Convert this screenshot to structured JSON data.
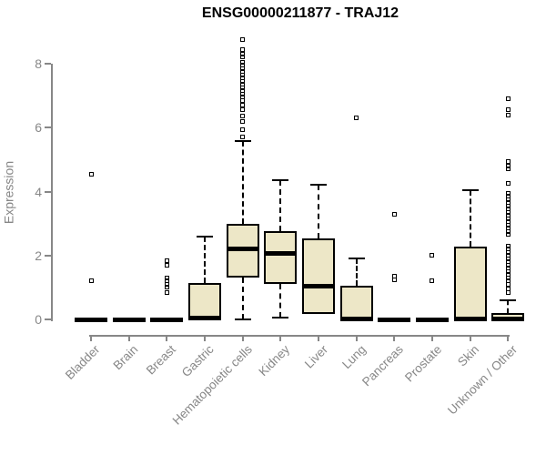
{
  "chart_data": {
    "type": "boxplot",
    "title": "ENSG00000211877 - TRAJ12",
    "xlabel": "",
    "ylabel": "Expression",
    "ylim": [
      0,
      8.8
    ],
    "yticks": [
      0,
      2,
      4,
      6,
      8
    ],
    "grid": false,
    "legend": "none",
    "box_fill_color": "#EDE7C7",
    "box_border_color": "#000000",
    "axis_color": "#878787",
    "title_color": "#000000",
    "categories": [
      "Bladder",
      "Brain",
      "Breast",
      "Gastric",
      "Hematopoietic cells",
      "Kidney",
      "Liver",
      "Lung",
      "Pancreas",
      "Prostate",
      "Skin",
      "Unknown / Other"
    ],
    "boxes": [
      {
        "category": "Bladder",
        "q1": 0,
        "median": 0,
        "q3": 0,
        "whisker_low": 0,
        "whisker_high": 0,
        "outliers": [
          1.2,
          4.55
        ]
      },
      {
        "category": "Brain",
        "q1": 0,
        "median": 0,
        "q3": 0,
        "whisker_low": 0,
        "whisker_high": 0,
        "outliers": []
      },
      {
        "category": "Breast",
        "q1": 0,
        "median": 0,
        "q3": 0,
        "whisker_low": 0,
        "whisker_high": 0,
        "outliers": [
          0.85,
          1.0,
          1.1,
          1.2,
          1.3,
          1.7,
          1.85
        ]
      },
      {
        "category": "Gastric",
        "q1": 0,
        "median": 0.05,
        "q3": 1.15,
        "whisker_low": 0,
        "whisker_high": 2.6,
        "outliers": []
      },
      {
        "category": "Hematopoietic cells",
        "q1": 1.3,
        "median": 2.2,
        "q3": 3.0,
        "whisker_low": 0,
        "whisker_high": 5.58,
        "outliers": [
          5.7,
          5.95,
          6.2,
          6.35,
          6.55,
          6.7,
          6.85,
          6.95,
          7.05,
          7.15,
          7.25,
          7.35,
          7.45,
          7.55,
          7.65,
          7.75,
          7.85,
          7.95,
          8.05,
          8.2,
          8.3,
          8.45,
          8.75
        ]
      },
      {
        "category": "Kidney",
        "q1": 1.12,
        "median": 2.05,
        "q3": 2.75,
        "whisker_low": 0.05,
        "whisker_high": 4.35,
        "outliers": []
      },
      {
        "category": "Liver",
        "q1": 0.18,
        "median": 1.05,
        "q3": 2.53,
        "whisker_low": 0.18,
        "whisker_high": 4.2,
        "outliers": []
      },
      {
        "category": "Lung",
        "q1": 0,
        "median": 0.02,
        "q3": 1.05,
        "whisker_low": 0,
        "whisker_high": 1.9,
        "outliers": [
          6.3
        ]
      },
      {
        "category": "Pancreas",
        "q1": 0,
        "median": 0,
        "q3": 0,
        "whisker_low": 0,
        "whisker_high": 0,
        "outliers": [
          1.25,
          1.35,
          3.3
        ]
      },
      {
        "category": "Prostate",
        "q1": 0,
        "median": 0,
        "q3": 0,
        "whisker_low": 0,
        "whisker_high": 0,
        "outliers": [
          1.2,
          2.0
        ]
      },
      {
        "category": "Skin",
        "q1": 0,
        "median": 0.02,
        "q3": 2.27,
        "whisker_low": 0,
        "whisker_high": 4.05,
        "outliers": []
      },
      {
        "category": "Unknown / Other",
        "q1": 0,
        "median": 0.02,
        "q3": 0.2,
        "whisker_low": 0,
        "whisker_high": 0.6,
        "outliers": [
          0.85,
          0.95,
          1.1,
          1.2,
          1.3,
          1.4,
          1.5,
          1.6,
          1.7,
          1.8,
          1.9,
          2.0,
          2.1,
          2.2,
          2.3,
          2.65,
          2.75,
          2.85,
          2.95,
          3.05,
          3.15,
          3.25,
          3.35,
          3.45,
          3.55,
          3.65,
          3.75,
          3.85,
          3.95,
          4.25,
          4.7,
          4.8,
          4.95,
          6.4,
          6.55,
          6.9
        ]
      }
    ]
  }
}
